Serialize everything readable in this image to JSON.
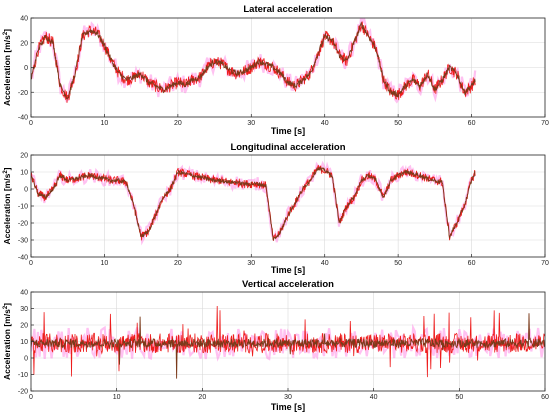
{
  "figure": {
    "ylabel": "Acceleration [m/s²]",
    "ylabel_base": "Acceleration [m/s",
    "ylabel_sup": "2",
    "ylabel_end": "]"
  },
  "colors": {
    "filtered": "#7a3a1a",
    "raw": "#ee1c1c",
    "spread": "#ff8ee6"
  },
  "chart_data": [
    {
      "type": "line",
      "title": "Lateral acceleration",
      "xlabel": "Time [s]",
      "ylabel": "Acceleration [m/s²]",
      "xlim": [
        0,
        70
      ],
      "ylim": [
        -40,
        40
      ],
      "xticks": [
        0,
        10,
        20,
        30,
        40,
        50,
        60,
        70
      ],
      "yticks": [
        -40,
        -20,
        0,
        20,
        40
      ],
      "grid": true,
      "noise": 5,
      "x": [
        0,
        1,
        2,
        3,
        4,
        5,
        6,
        7,
        8,
        9,
        10,
        11,
        12,
        13,
        14,
        15,
        16,
        17,
        18,
        19,
        20,
        21,
        22,
        23,
        24,
        25,
        26,
        27,
        28,
        29,
        30,
        31,
        32,
        33,
        34,
        35,
        36,
        37,
        38,
        39,
        40,
        41,
        42,
        43,
        44,
        45,
        46,
        47,
        48,
        49,
        50,
        51,
        52,
        53,
        54,
        55,
        56,
        57,
        58,
        59,
        60,
        60.5
      ],
      "y": [
        -10,
        15,
        25,
        20,
        -15,
        -25,
        -5,
        25,
        30,
        28,
        18,
        5,
        -5,
        -10,
        -8,
        -5,
        -12,
        -15,
        -18,
        -15,
        -12,
        -14,
        -10,
        -8,
        0,
        5,
        3,
        -2,
        -5,
        -3,
        0,
        5,
        3,
        0,
        -5,
        -12,
        -15,
        -10,
        -5,
        10,
        25,
        22,
        10,
        5,
        20,
        35,
        25,
        15,
        -10,
        -20,
        -22,
        -15,
        -10,
        -15,
        -5,
        -18,
        -10,
        0,
        -5,
        -20,
        -15,
        -10
      ]
    },
    {
      "type": "line",
      "title": "Longitudinal acceleration",
      "xlabel": "Time [s]",
      "ylabel": "Acceleration [m/s²]",
      "xlim": [
        0,
        70
      ],
      "ylim": [
        -40,
        20
      ],
      "xticks": [
        0,
        10,
        20,
        30,
        40,
        50,
        60,
        70
      ],
      "yticks": [
        -40,
        -30,
        -20,
        -10,
        0,
        10,
        20
      ],
      "grid": true,
      "noise": 2.5,
      "x": [
        0,
        1,
        2,
        3,
        4,
        5,
        6,
        7,
        8,
        9,
        10,
        11,
        12,
        13,
        14,
        15,
        16,
        17,
        18,
        19,
        20,
        21,
        22,
        23,
        24,
        25,
        26,
        27,
        28,
        29,
        30,
        31,
        32,
        33,
        34,
        35,
        36,
        37,
        38,
        39,
        40,
        41,
        42,
        43,
        44,
        45,
        46,
        47,
        48,
        49,
        50,
        51,
        52,
        53,
        54,
        55,
        56,
        57,
        58,
        59,
        60,
        60.5
      ],
      "y": [
        8,
        -3,
        -5,
        0,
        8,
        5,
        6,
        7,
        8,
        7,
        6,
        5,
        5,
        4,
        -10,
        -28,
        -25,
        -15,
        -5,
        0,
        10,
        9,
        8,
        7,
        6,
        5,
        5,
        4,
        4,
        3,
        3,
        3,
        2,
        -30,
        -25,
        -15,
        -8,
        0,
        5,
        12,
        11,
        8,
        -20,
        -10,
        -5,
        5,
        8,
        5,
        -5,
        5,
        8,
        10,
        9,
        8,
        6,
        5,
        4,
        -28,
        -20,
        -10,
        5,
        10
      ]
    },
    {
      "type": "line",
      "title": "Vertical acceleration",
      "xlabel": "Time [s]",
      "ylabel": "Acceleration [m/s²]",
      "xlim": [
        0,
        60
      ],
      "ylim": [
        -20,
        40
      ],
      "xticks": [
        0,
        10,
        20,
        30,
        40,
        50,
        60
      ],
      "yticks": [
        -20,
        -10,
        0,
        10,
        20,
        30,
        40
      ],
      "grid": true,
      "noise": 6,
      "x": [
        0,
        60
      ],
      "y": [
        9,
        9
      ]
    }
  ]
}
